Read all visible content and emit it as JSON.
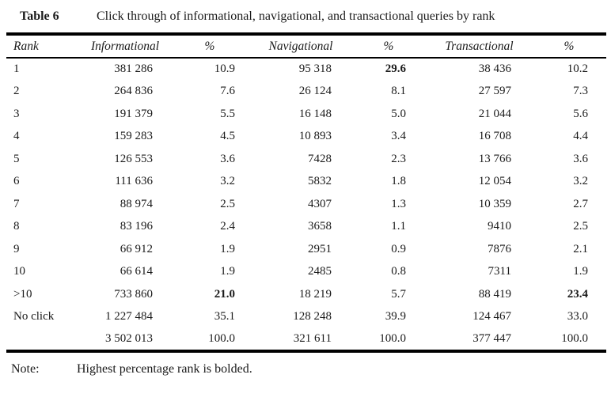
{
  "title": {
    "label": "Table 6",
    "caption": "Click through of informational, navigational, and transactional queries by rank"
  },
  "table": {
    "columns": [
      "Rank",
      "Informational",
      "%",
      "Navigational",
      "%",
      "Transactional",
      "%"
    ],
    "rows": [
      [
        "1",
        "381 286",
        "10.9",
        "95 318",
        "29.6",
        "38 436",
        "10.2"
      ],
      [
        "2",
        "264 836",
        "7.6",
        "26 124",
        "8.1",
        "27 597",
        "7.3"
      ],
      [
        "3",
        "191 379",
        "5.5",
        "16 148",
        "5.0",
        "21 044",
        "5.6"
      ],
      [
        "4",
        "159 283",
        "4.5",
        "10 893",
        "3.4",
        "16 708",
        "4.4"
      ],
      [
        "5",
        "126 553",
        "3.6",
        "7428",
        "2.3",
        "13 766",
        "3.6"
      ],
      [
        "6",
        "111 636",
        "3.2",
        "5832",
        "1.8",
        "12 054",
        "3.2"
      ],
      [
        "7",
        "88 974",
        "2.5",
        "4307",
        "1.3",
        "10 359",
        "2.7"
      ],
      [
        "8",
        "83 196",
        "2.4",
        "3658",
        "1.1",
        "9410",
        "2.5"
      ],
      [
        "9",
        "66 912",
        "1.9",
        "2951",
        "0.9",
        "7876",
        "2.1"
      ],
      [
        "10",
        "66 614",
        "1.9",
        "2485",
        "0.8",
        "7311",
        "1.9"
      ],
      [
        ">10",
        "733 860",
        "21.0",
        "18 219",
        "5.7",
        "88 419",
        "23.4"
      ],
      [
        "No click",
        "1 227 484",
        "35.1",
        "128 248",
        "39.9",
        "124 467",
        "33.0"
      ]
    ],
    "total_row": [
      "",
      "3 502 013",
      "100.0",
      "321 611",
      "100.0",
      "377 447",
      "100.0"
    ],
    "bold_cells": [
      [
        0,
        4
      ],
      [
        10,
        2
      ],
      [
        10,
        6
      ]
    ]
  },
  "note": {
    "label": "Note:",
    "text": "Highest percentage rank is bolded."
  }
}
